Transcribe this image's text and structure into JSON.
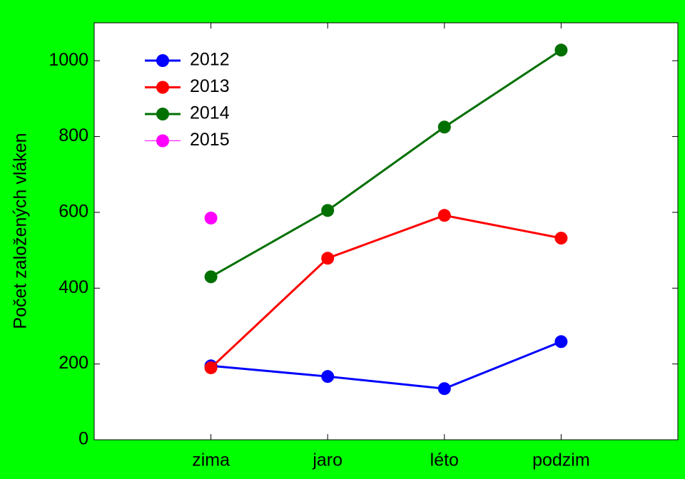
{
  "chart_data": {
    "type": "line",
    "y_label": "Počet založených vláken",
    "categories": [
      "zima",
      "jaro",
      "léto",
      "podzim"
    ],
    "series": [
      {
        "name": "2012",
        "color": "#0000ff",
        "values": [
          195,
          167,
          135,
          259
        ]
      },
      {
        "name": "2013",
        "color": "#ff0000",
        "values": [
          190,
          479,
          592,
          532
        ]
      },
      {
        "name": "2014",
        "color": "#007000",
        "values": [
          430,
          605,
          825,
          1028
        ]
      },
      {
        "name": "2015",
        "color": "#ff00ff",
        "values": [
          585,
          null,
          null,
          null
        ]
      }
    ],
    "ylim": [
      0,
      1100
    ],
    "yticks": [
      0,
      200,
      400,
      600,
      800,
      1000
    ],
    "background": "#00ff00",
    "legend": "top-left",
    "grid": false
  }
}
